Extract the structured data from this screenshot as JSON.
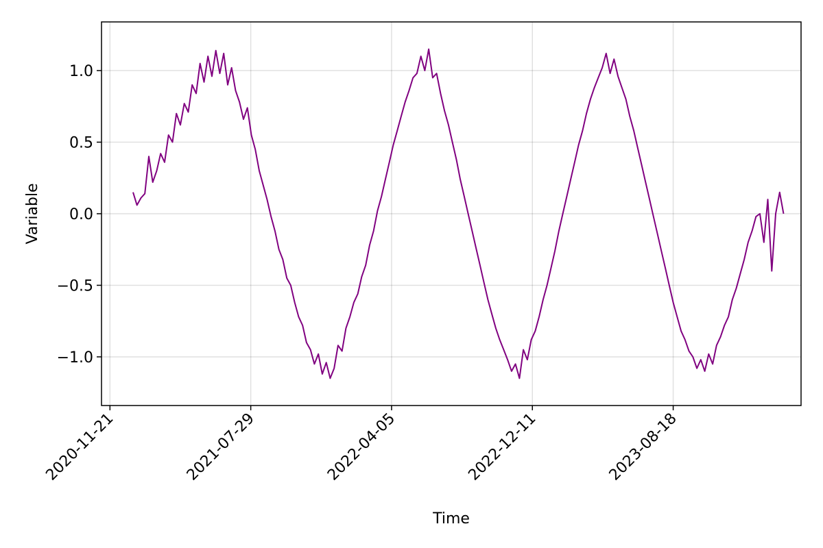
{
  "chart_data": {
    "type": "line",
    "title": "",
    "xlabel": "Time",
    "ylabel": "Variable",
    "x_ticks": [
      {
        "date": "2020-11-21",
        "label": "2020-11-21"
      },
      {
        "date": "2021-07-29",
        "label": "2021-07-29"
      },
      {
        "date": "2022-04-05",
        "label": "2022-04-05"
      },
      {
        "date": "2022-12-11",
        "label": "2022-12-11"
      },
      {
        "date": "2023-08-18",
        "label": "2023-08-18"
      }
    ],
    "y_ticks": [
      {
        "value": -1.0,
        "label": "−1.0"
      },
      {
        "value": -0.5,
        "label": "−0.5"
      },
      {
        "value": 0.0,
        "label": "0.0"
      },
      {
        "value": 0.5,
        "label": "0.5"
      },
      {
        "value": 1.0,
        "label": "1.0"
      }
    ],
    "xlim": [
      "2020-11-06",
      "2024-04-01"
    ],
    "ylim": [
      -1.34,
      1.34
    ],
    "grid": true,
    "legend": "none",
    "series": [
      {
        "color": "#800080",
        "x": [
          "2021-01-01",
          "2021-01-08",
          "2021-01-15",
          "2021-01-22",
          "2021-01-29",
          "2021-02-05",
          "2021-02-12",
          "2021-02-19",
          "2021-02-26",
          "2021-03-05",
          "2021-03-12",
          "2021-03-19",
          "2021-03-26",
          "2021-04-02",
          "2021-04-09",
          "2021-04-16",
          "2021-04-23",
          "2021-04-30",
          "2021-05-07",
          "2021-05-14",
          "2021-05-21",
          "2021-05-28",
          "2021-06-04",
          "2021-06-11",
          "2021-06-18",
          "2021-06-25",
          "2021-07-02",
          "2021-07-09",
          "2021-07-16",
          "2021-07-23",
          "2021-07-30",
          "2021-08-06",
          "2021-08-13",
          "2021-08-20",
          "2021-08-27",
          "2021-09-03",
          "2021-09-10",
          "2021-09-17",
          "2021-09-24",
          "2021-10-01",
          "2021-10-08",
          "2021-10-15",
          "2021-10-22",
          "2021-10-29",
          "2021-11-05",
          "2021-11-12",
          "2021-11-19",
          "2021-11-26",
          "2021-12-03",
          "2021-12-10",
          "2021-12-17",
          "2021-12-24",
          "2021-12-31",
          "2022-01-07",
          "2022-01-14",
          "2022-01-21",
          "2022-01-28",
          "2022-02-04",
          "2022-02-11",
          "2022-02-18",
          "2022-02-25",
          "2022-03-04",
          "2022-03-11",
          "2022-03-18",
          "2022-03-25",
          "2022-04-01",
          "2022-04-08",
          "2022-04-15",
          "2022-04-22",
          "2022-04-29",
          "2022-05-06",
          "2022-05-13",
          "2022-05-20",
          "2022-05-27",
          "2022-06-03",
          "2022-06-10",
          "2022-06-17",
          "2022-06-24",
          "2022-07-01",
          "2022-07-08",
          "2022-07-15",
          "2022-07-22",
          "2022-07-29",
          "2022-08-05",
          "2022-08-12",
          "2022-08-19",
          "2022-08-26",
          "2022-09-02",
          "2022-09-09",
          "2022-09-16",
          "2022-09-23",
          "2022-09-30",
          "2022-10-07",
          "2022-10-14",
          "2022-10-21",
          "2022-10-28",
          "2022-11-04",
          "2022-11-11",
          "2022-11-18",
          "2022-11-25",
          "2022-12-02",
          "2022-12-09",
          "2022-12-16",
          "2022-12-23",
          "2022-12-30",
          "2023-01-06",
          "2023-01-13",
          "2023-01-20",
          "2023-01-27",
          "2023-02-03",
          "2023-02-10",
          "2023-02-17",
          "2023-02-24",
          "2023-03-03",
          "2023-03-10",
          "2023-03-17",
          "2023-03-24",
          "2023-03-31",
          "2023-04-07",
          "2023-04-14",
          "2023-04-21",
          "2023-04-28",
          "2023-05-05",
          "2023-05-12",
          "2023-05-19",
          "2023-05-26",
          "2023-06-02",
          "2023-06-09",
          "2023-06-16",
          "2023-06-23",
          "2023-06-30",
          "2023-07-07",
          "2023-07-14",
          "2023-07-21",
          "2023-07-28",
          "2023-08-04",
          "2023-08-11",
          "2023-08-18",
          "2023-08-25",
          "2023-09-01",
          "2023-09-08",
          "2023-09-15",
          "2023-09-22",
          "2023-09-29",
          "2023-10-06",
          "2023-10-13",
          "2023-10-20",
          "2023-10-27",
          "2023-11-03",
          "2023-11-10",
          "2023-11-17",
          "2023-11-24",
          "2023-12-01",
          "2023-12-08",
          "2023-12-15",
          "2023-12-22",
          "2023-12-29",
          "2024-01-05",
          "2024-01-12",
          "2024-01-19",
          "2024-01-26",
          "2024-02-02",
          "2024-02-09",
          "2024-02-16",
          "2024-02-23",
          "2024-03-01"
        ],
        "y": [
          0.15,
          0.06,
          0.11,
          0.14,
          0.4,
          0.22,
          0.3,
          0.42,
          0.36,
          0.55,
          0.5,
          0.7,
          0.62,
          0.77,
          0.71,
          0.9,
          0.84,
          1.05,
          0.92,
          1.1,
          0.96,
          1.14,
          0.98,
          1.12,
          0.9,
          1.02,
          0.86,
          0.78,
          0.66,
          0.74,
          0.55,
          0.45,
          0.3,
          0.2,
          0.1,
          -0.02,
          -0.12,
          -0.25,
          -0.32,
          -0.45,
          -0.5,
          -0.62,
          -0.72,
          -0.78,
          -0.9,
          -0.95,
          -1.05,
          -0.98,
          -1.12,
          -1.04,
          -1.15,
          -1.08,
          -0.92,
          -0.96,
          -0.8,
          -0.72,
          -0.62,
          -0.56,
          -0.44,
          -0.36,
          -0.22,
          -0.12,
          0.02,
          0.12,
          0.24,
          0.36,
          0.48,
          0.58,
          0.68,
          0.78,
          0.86,
          0.95,
          0.98,
          1.1,
          1.0,
          1.15,
          0.95,
          0.98,
          0.84,
          0.72,
          0.62,
          0.5,
          0.38,
          0.24,
          0.12,
          0.0,
          -0.12,
          -0.24,
          -0.36,
          -0.48,
          -0.6,
          -0.7,
          -0.8,
          -0.88,
          -0.95,
          -1.02,
          -1.1,
          -1.05,
          -1.15,
          -0.95,
          -1.02,
          -0.88,
          -0.82,
          -0.72,
          -0.6,
          -0.5,
          -0.38,
          -0.26,
          -0.12,
          0.0,
          0.12,
          0.24,
          0.36,
          0.48,
          0.58,
          0.7,
          0.8,
          0.88,
          0.95,
          1.02,
          1.12,
          0.98,
          1.08,
          0.96,
          0.88,
          0.8,
          0.68,
          0.58,
          0.46,
          0.34,
          0.22,
          0.1,
          -0.02,
          -0.14,
          -0.26,
          -0.38,
          -0.5,
          -0.62,
          -0.72,
          -0.82,
          -0.88,
          -0.96,
          -1.0,
          -1.08,
          -1.02,
          -1.1,
          -0.98,
          -1.05,
          -0.92,
          -0.86,
          -0.78,
          -0.72,
          -0.6,
          -0.52,
          -0.42,
          -0.32,
          -0.2,
          -0.12,
          -0.02,
          0.0,
          -0.2,
          0.1,
          -0.4,
          0.0,
          0.15,
          0.0
        ]
      }
    ]
  }
}
